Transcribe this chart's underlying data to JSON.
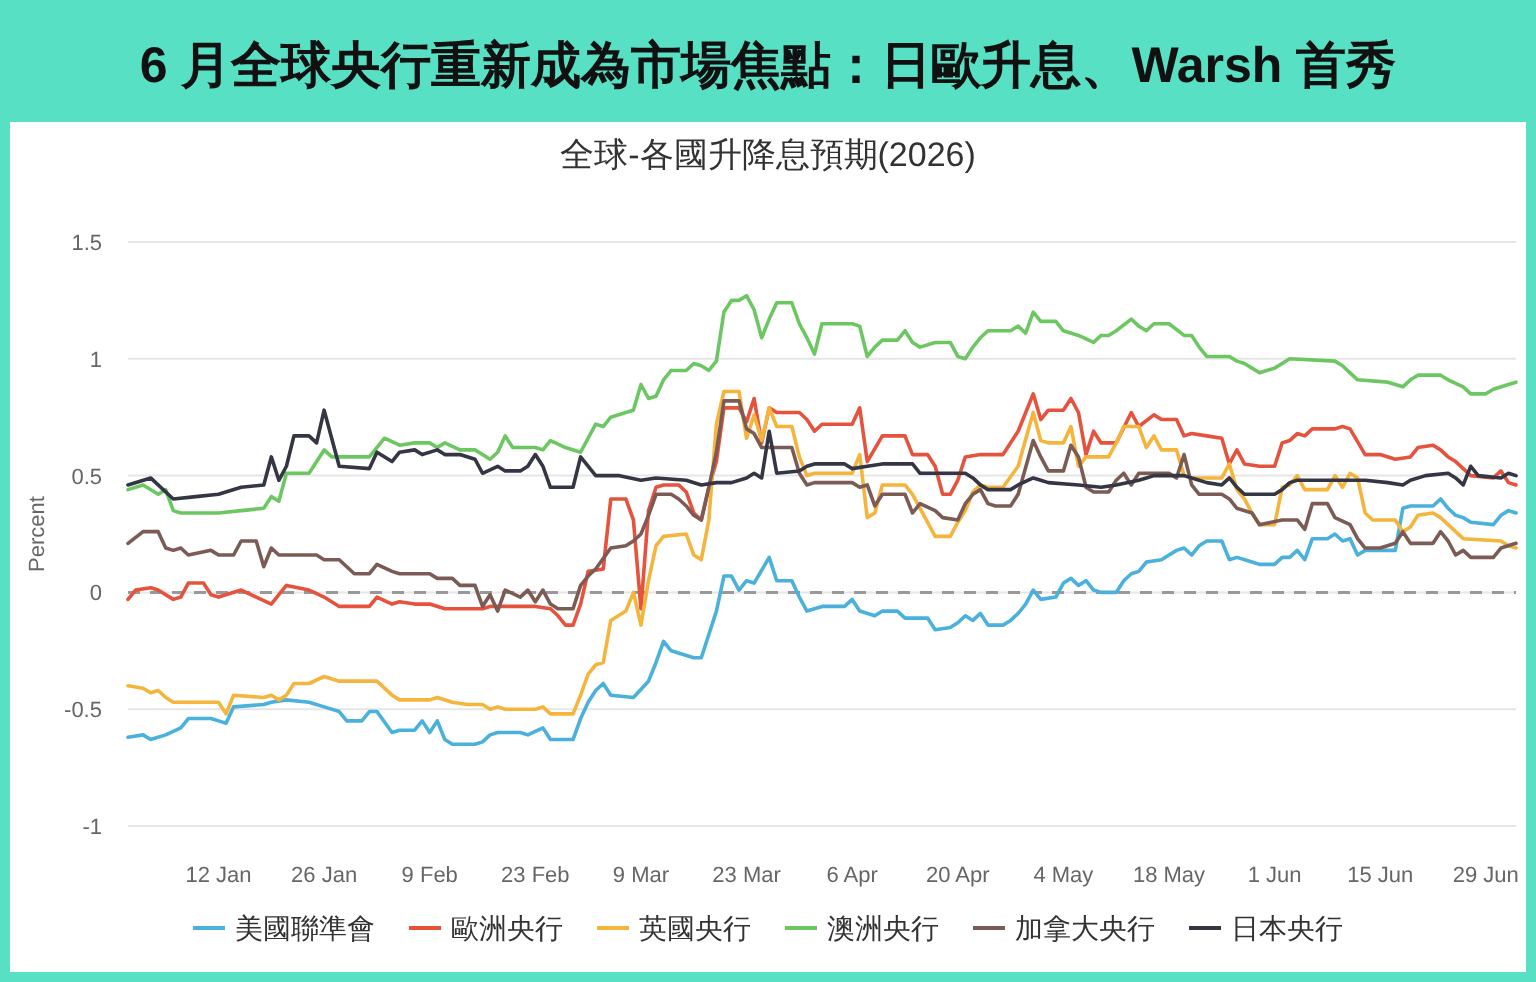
{
  "chart_data": {
    "type": "line",
    "title": "6 月全球央行重新成為市場焦點：日歐升息、Warsh 首秀",
    "subtitle": "全球-各國升降息預期(2026)",
    "ylabel": "Percent",
    "xlim": [
      "2025-12-31",
      "2026-07-03"
    ],
    "xticks": [
      {
        "value": "2026-01-12",
        "label": "12 Jan"
      },
      {
        "value": "2026-01-26",
        "label": "26 Jan"
      },
      {
        "value": "2026-02-09",
        "label": "9 Feb"
      },
      {
        "value": "2026-02-23",
        "label": "23 Feb"
      },
      {
        "value": "2026-03-09",
        "label": "9 Mar"
      },
      {
        "value": "2026-03-23",
        "label": "23 Mar"
      },
      {
        "value": "2026-04-06",
        "label": "6 Apr"
      },
      {
        "value": "2026-04-20",
        "label": "20 Apr"
      },
      {
        "value": "2026-05-04",
        "label": "4 May"
      },
      {
        "value": "2026-05-18",
        "label": "18 May"
      },
      {
        "value": "2026-06-01",
        "label": "1 Jun"
      },
      {
        "value": "2026-06-15",
        "label": "15 Jun"
      },
      {
        "value": "2026-06-29",
        "label": "29 Jun"
      }
    ],
    "ylim": [
      -1,
      1.5
    ],
    "yticks": [
      -1,
      -0.5,
      0,
      0.5,
      1,
      1.5
    ],
    "grid": "y",
    "legend": "bottom",
    "ref_lines": [
      {
        "axis": "y",
        "value": 0,
        "color": "#999999",
        "line_style": "dashed"
      }
    ],
    "series": [
      {
        "name": "美國聯準會",
        "color": "#4ab0dc",
        "x": [
          "2025-12-31",
          "2026-01-02",
          "2026-01-03",
          "2026-01-05",
          "2026-01-07",
          "2026-01-08",
          "2026-01-11",
          "2026-01-12",
          "2026-01-13",
          "2026-01-14",
          "2026-01-18",
          "2026-01-19",
          "2026-01-21",
          "2026-01-24",
          "2026-01-26",
          "2026-01-28",
          "2026-01-29",
          "2026-01-31",
          "2026-02-01",
          "2026-02-02",
          "2026-02-04",
          "2026-02-05",
          "2026-02-07",
          "2026-02-08",
          "2026-02-09",
          "2026-02-10",
          "2026-02-11",
          "2026-02-12",
          "2026-02-15",
          "2026-02-16",
          "2026-02-17",
          "2026-02-18",
          "2026-02-21",
          "2026-02-22",
          "2026-02-24",
          "2026-02-25",
          "2026-02-28",
          "2026-03-01",
          "2026-03-02",
          "2026-03-03",
          "2026-03-04",
          "2026-03-05",
          "2026-03-08",
          "2026-03-10",
          "2026-03-11",
          "2026-03-12",
          "2026-03-13",
          "2026-03-16",
          "2026-03-17",
          "2026-03-18",
          "2026-03-19",
          "2026-03-20",
          "2026-03-21",
          "2026-03-22",
          "2026-03-23",
          "2026-03-24",
          "2026-03-26",
          "2026-03-27",
          "2026-03-29",
          "2026-03-30",
          "2026-03-31",
          "2026-04-02",
          "2026-04-05",
          "2026-04-06",
          "2026-04-07",
          "2026-04-09",
          "2026-04-10",
          "2026-04-12",
          "2026-04-13",
          "2026-04-16",
          "2026-04-17",
          "2026-04-19",
          "2026-04-20",
          "2026-04-21",
          "2026-04-22",
          "2026-04-23",
          "2026-04-24",
          "2026-04-26",
          "2026-04-27",
          "2026-04-28",
          "2026-04-29",
          "2026-04-30",
          "2026-05-01",
          "2026-05-03",
          "2026-05-04",
          "2026-05-05",
          "2026-05-06",
          "2026-05-07",
          "2026-05-08",
          "2026-05-09",
          "2026-05-11",
          "2026-05-12",
          "2026-05-13",
          "2026-05-14",
          "2026-05-15",
          "2026-05-17",
          "2026-05-18",
          "2026-05-19",
          "2026-05-20",
          "2026-05-21",
          "2026-05-22",
          "2026-05-23",
          "2026-05-25",
          "2026-05-26",
          "2026-05-27",
          "2026-05-29",
          "2026-05-30",
          "2026-06-01",
          "2026-06-02",
          "2026-06-03",
          "2026-06-04",
          "2026-06-05",
          "2026-06-06",
          "2026-06-08",
          "2026-06-09",
          "2026-06-10",
          "2026-06-11",
          "2026-06-12",
          "2026-06-13",
          "2026-06-17",
          "2026-06-18",
          "2026-06-19",
          "2026-06-22",
          "2026-06-23",
          "2026-06-24",
          "2026-06-25",
          "2026-06-26",
          "2026-06-27",
          "2026-06-30",
          "2026-07-01",
          "2026-07-02",
          "2026-07-03"
        ],
        "values": [
          -0.62,
          -0.61,
          -0.63,
          -0.61,
          -0.58,
          -0.54,
          -0.54,
          -0.55,
          -0.56,
          -0.49,
          -0.48,
          -0.47,
          -0.46,
          -0.47,
          -0.49,
          -0.51,
          -0.55,
          -0.55,
          -0.51,
          -0.51,
          -0.6,
          -0.59,
          -0.59,
          -0.55,
          -0.6,
          -0.55,
          -0.63,
          -0.65,
          -0.65,
          -0.64,
          -0.61,
          -0.6,
          -0.6,
          -0.61,
          -0.58,
          -0.63,
          -0.63,
          -0.54,
          -0.47,
          -0.42,
          -0.39,
          -0.44,
          -0.45,
          -0.38,
          -0.3,
          -0.21,
          -0.25,
          -0.28,
          -0.28,
          -0.18,
          -0.08,
          0.07,
          0.07,
          0.01,
          0.05,
          0.04,
          0.15,
          0.05,
          0.05,
          -0.02,
          -0.08,
          -0.06,
          -0.06,
          -0.03,
          -0.08,
          -0.1,
          -0.08,
          -0.08,
          -0.11,
          -0.11,
          -0.16,
          -0.15,
          -0.13,
          -0.1,
          -0.12,
          -0.09,
          -0.14,
          -0.14,
          -0.12,
          -0.09,
          -0.05,
          0.01,
          -0.03,
          -0.02,
          0.04,
          0.06,
          0.03,
          0.05,
          0.01,
          0,
          0,
          0.05,
          0.08,
          0.09,
          0.13,
          0.14,
          0.16,
          0.18,
          0.19,
          0.16,
          0.2,
          0.22,
          0.22,
          0.14,
          0.15,
          0.13,
          0.12,
          0.12,
          0.15,
          0.15,
          0.18,
          0.14,
          0.23,
          0.23,
          0.25,
          0.22,
          0.23,
          0.16,
          0.18,
          0.18,
          0.36,
          0.37,
          0.37,
          0.4,
          0.36,
          0.33,
          0.32,
          0.3,
          0.29,
          0.33,
          0.35,
          0.34
        ]
      },
      {
        "name": "歐洲央行",
        "color": "#e5533d",
        "x": [
          "2025-12-31",
          "2026-01-01",
          "2026-01-03",
          "2026-01-04",
          "2026-01-06",
          "2026-01-07",
          "2026-01-08",
          "2026-01-10",
          "2026-01-11",
          "2026-01-12",
          "2026-01-15",
          "2026-01-17",
          "2026-01-19",
          "2026-01-20",
          "2026-01-21",
          "2026-01-24",
          "2026-01-26",
          "2026-01-28",
          "2026-02-01",
          "2026-02-02",
          "2026-02-04",
          "2026-02-05",
          "2026-02-07",
          "2026-02-09",
          "2026-02-11",
          "2026-02-16",
          "2026-02-17",
          "2026-02-23",
          "2026-02-25",
          "2026-02-26",
          "2026-02-27",
          "2026-02-28",
          "2026-03-01",
          "2026-03-02",
          "2026-03-04",
          "2026-03-05",
          "2026-03-07",
          "2026-03-08",
          "2026-03-09",
          "2026-03-10",
          "2026-03-11",
          "2026-03-12",
          "2026-03-14",
          "2026-03-15",
          "2026-03-16",
          "2026-03-17",
          "2026-03-18",
          "2026-03-19",
          "2026-03-20",
          "2026-03-22",
          "2026-03-23",
          "2026-03-24",
          "2026-03-25",
          "2026-03-26",
          "2026-03-27",
          "2026-03-30",
          "2026-03-31",
          "2026-04-01",
          "2026-04-02",
          "2026-04-06",
          "2026-04-07",
          "2026-04-08",
          "2026-04-10",
          "2026-04-13",
          "2026-04-14",
          "2026-04-16",
          "2026-04-17",
          "2026-04-18",
          "2026-04-19",
          "2026-04-20",
          "2026-04-21",
          "2026-04-23",
          "2026-04-26",
          "2026-04-28",
          "2026-04-30",
          "2026-05-01",
          "2026-05-02",
          "2026-05-04",
          "2026-05-05",
          "2026-05-06",
          "2026-05-07",
          "2026-05-08",
          "2026-05-09",
          "2026-05-11",
          "2026-05-13",
          "2026-05-14",
          "2026-05-16",
          "2026-05-17",
          "2026-05-19",
          "2026-05-20",
          "2026-05-21",
          "2026-05-23",
          "2026-05-25",
          "2026-05-26",
          "2026-05-27",
          "2026-05-28",
          "2026-05-30",
          "2026-06-01",
          "2026-06-02",
          "2026-06-03",
          "2026-06-04",
          "2026-06-05",
          "2026-06-06",
          "2026-06-09",
          "2026-06-10",
          "2026-06-11",
          "2026-06-13",
          "2026-06-15",
          "2026-06-17",
          "2026-06-19",
          "2026-06-20",
          "2026-06-22",
          "2026-06-23",
          "2026-06-24",
          "2026-06-25",
          "2026-06-27",
          "2026-06-30",
          "2026-07-01",
          "2026-07-02",
          "2026-07-03"
        ],
        "values": [
          -0.03,
          0.01,
          0.02,
          0.01,
          -0.03,
          -0.02,
          0.04,
          0.04,
          -0.01,
          -0.02,
          0.01,
          -0.02,
          -0.05,
          -0.01,
          0.03,
          0.01,
          -0.02,
          -0.06,
          -0.06,
          -0.02,
          -0.05,
          -0.04,
          -0.05,
          -0.05,
          -0.07,
          -0.07,
          -0.06,
          -0.06,
          -0.07,
          -0.1,
          -0.14,
          -0.14,
          -0.05,
          0.09,
          0.1,
          0.4,
          0.4,
          0.31,
          -0.07,
          0.35,
          0.45,
          0.46,
          0.46,
          0.43,
          0.34,
          0.31,
          0.45,
          0.56,
          0.79,
          0.79,
          0.73,
          0.83,
          0.64,
          0.79,
          0.77,
          0.77,
          0.74,
          0.69,
          0.72,
          0.72,
          0.79,
          0.56,
          0.67,
          0.67,
          0.59,
          0.59,
          0.54,
          0.42,
          0.42,
          0.48,
          0.58,
          0.59,
          0.59,
          0.69,
          0.85,
          0.74,
          0.78,
          0.78,
          0.83,
          0.77,
          0.59,
          0.69,
          0.64,
          0.64,
          0.77,
          0.71,
          0.76,
          0.74,
          0.74,
          0.67,
          0.68,
          0.67,
          0.66,
          0.55,
          0.61,
          0.55,
          0.54,
          0.54,
          0.64,
          0.65,
          0.68,
          0.67,
          0.7,
          0.7,
          0.71,
          0.7,
          0.59,
          0.59,
          0.57,
          0.58,
          0.62,
          0.63,
          0.61,
          0.58,
          0.56,
          0.5,
          0.49,
          0.52,
          0.47,
          0.46
        ]
      },
      {
        "name": "英國央行",
        "color": "#f5b43c",
        "x": [
          "2025-12-31",
          "2026-01-02",
          "2026-01-03",
          "2026-01-04",
          "2026-01-05",
          "2026-01-06",
          "2026-01-12",
          "2026-01-13",
          "2026-01-14",
          "2026-01-18",
          "2026-01-19",
          "2026-01-20",
          "2026-01-21",
          "2026-01-22",
          "2026-01-24",
          "2026-01-26",
          "2026-01-28",
          "2026-02-02",
          "2026-02-04",
          "2026-02-05",
          "2026-02-09",
          "2026-02-10",
          "2026-02-12",
          "2026-02-14",
          "2026-02-16",
          "2026-02-17",
          "2026-02-18",
          "2026-02-19",
          "2026-02-23",
          "2026-02-24",
          "2026-02-25",
          "2026-02-28",
          "2026-03-01",
          "2026-03-02",
          "2026-03-03",
          "2026-03-04",
          "2026-03-05",
          "2026-03-07",
          "2026-03-08",
          "2026-03-09",
          "2026-03-10",
          "2026-03-11",
          "2026-03-12",
          "2026-03-15",
          "2026-03-16",
          "2026-03-17",
          "2026-03-18",
          "2026-03-19",
          "2026-03-20",
          "2026-03-22",
          "2026-03-23",
          "2026-03-24",
          "2026-03-25",
          "2026-03-26",
          "2026-03-27",
          "2026-03-29",
          "2026-03-30",
          "2026-03-31",
          "2026-04-01",
          "2026-04-06",
          "2026-04-07",
          "2026-04-08",
          "2026-04-09",
          "2026-04-10",
          "2026-04-13",
          "2026-04-14",
          "2026-04-15",
          "2026-04-16",
          "2026-04-17",
          "2026-04-19",
          "2026-04-20",
          "2026-04-21",
          "2026-04-22",
          "2026-04-23",
          "2026-04-24",
          "2026-04-26",
          "2026-04-28",
          "2026-04-30",
          "2026-05-01",
          "2026-05-02",
          "2026-05-04",
          "2026-05-05",
          "2026-05-06",
          "2026-05-07",
          "2026-05-10",
          "2026-05-11",
          "2026-05-12",
          "2026-05-14",
          "2026-05-15",
          "2026-05-16",
          "2026-05-17",
          "2026-05-19",
          "2026-05-20",
          "2026-05-21",
          "2026-05-25",
          "2026-05-26",
          "2026-05-27",
          "2026-05-28",
          "2026-05-29",
          "2026-05-30",
          "2026-06-01",
          "2026-06-02",
          "2026-06-03",
          "2026-06-04",
          "2026-06-05",
          "2026-06-08",
          "2026-06-09",
          "2026-06-10",
          "2026-06-11",
          "2026-06-12",
          "2026-06-13",
          "2026-06-14",
          "2026-06-17",
          "2026-06-18",
          "2026-06-19",
          "2026-06-20",
          "2026-06-22",
          "2026-06-23",
          "2026-06-25",
          "2026-06-26",
          "2026-07-01",
          "2026-07-02",
          "2026-07-03"
        ],
        "values": [
          -0.4,
          -0.41,
          -0.43,
          -0.42,
          -0.45,
          -0.47,
          -0.47,
          -0.52,
          -0.44,
          -0.45,
          -0.44,
          -0.46,
          -0.44,
          -0.39,
          -0.39,
          -0.36,
          -0.38,
          -0.38,
          -0.44,
          -0.46,
          -0.46,
          -0.45,
          -0.47,
          -0.48,
          -0.48,
          -0.5,
          -0.49,
          -0.5,
          -0.5,
          -0.49,
          -0.52,
          -0.52,
          -0.44,
          -0.35,
          -0.31,
          -0.3,
          -0.12,
          -0.08,
          0,
          -0.14,
          0.05,
          0.2,
          0.24,
          0.25,
          0.16,
          0.14,
          0.31,
          0.72,
          0.86,
          0.86,
          0.66,
          0.76,
          0.65,
          0.79,
          0.71,
          0.71,
          0.58,
          0.5,
          0.51,
          0.51,
          0.59,
          0.32,
          0.34,
          0.46,
          0.46,
          0.42,
          0.36,
          0.3,
          0.24,
          0.24,
          0.3,
          0.35,
          0.43,
          0.46,
          0.45,
          0.45,
          0.54,
          0.77,
          0.65,
          0.64,
          0.64,
          0.71,
          0.54,
          0.58,
          0.58,
          0.64,
          0.71,
          0.71,
          0.62,
          0.67,
          0.61,
          0.61,
          0.5,
          0.49,
          0.49,
          0.55,
          0.44,
          0.4,
          0.34,
          0.29,
          0.29,
          0.45,
          0.46,
          0.5,
          0.44,
          0.44,
          0.5,
          0.45,
          0.51,
          0.49,
          0.34,
          0.31,
          0.31,
          0.26,
          0.28,
          0.33,
          0.34,
          0.32,
          0.26,
          0.23,
          0.22,
          0.2,
          0.19
        ]
      },
      {
        "name": "澳洲央行",
        "color": "#6cc763",
        "x": [
          "2025-12-31",
          "2026-01-02",
          "2026-01-04",
          "2026-01-05",
          "2026-01-06",
          "2026-01-07",
          "2026-01-12",
          "2026-01-15",
          "2026-01-18",
          "2026-01-19",
          "2026-01-20",
          "2026-01-21",
          "2026-01-24",
          "2026-01-26",
          "2026-01-27",
          "2026-02-01",
          "2026-02-03",
          "2026-02-05",
          "2026-02-07",
          "2026-02-09",
          "2026-02-10",
          "2026-02-11",
          "2026-02-13",
          "2026-02-15",
          "2026-02-17",
          "2026-02-18",
          "2026-02-19",
          "2026-02-20",
          "2026-02-23",
          "2026-02-24",
          "2026-02-25",
          "2026-02-27",
          "2026-03-01",
          "2026-03-03",
          "2026-03-04",
          "2026-03-05",
          "2026-03-07",
          "2026-03-08",
          "2026-03-09",
          "2026-03-10",
          "2026-03-11",
          "2026-03-12",
          "2026-03-13",
          "2026-03-15",
          "2026-03-16",
          "2026-03-17",
          "2026-03-18",
          "2026-03-19",
          "2026-03-20",
          "2026-03-21",
          "2026-03-22",
          "2026-03-23",
          "2026-03-24",
          "2026-03-25",
          "2026-03-26",
          "2026-03-27",
          "2026-03-29",
          "2026-03-30",
          "2026-03-31",
          "2026-04-01",
          "2026-04-02",
          "2026-04-06",
          "2026-04-07",
          "2026-04-08",
          "2026-04-09",
          "2026-04-10",
          "2026-04-12",
          "2026-04-13",
          "2026-04-14",
          "2026-04-15",
          "2026-04-17",
          "2026-04-19",
          "2026-04-20",
          "2026-04-21",
          "2026-04-22",
          "2026-04-23",
          "2026-04-24",
          "2026-04-27",
          "2026-04-28",
          "2026-04-29",
          "2026-04-30",
          "2026-05-01",
          "2026-05-03",
          "2026-05-04",
          "2026-05-06",
          "2026-05-08",
          "2026-05-09",
          "2026-05-10",
          "2026-05-11",
          "2026-05-13",
          "2026-05-14",
          "2026-05-15",
          "2026-05-16",
          "2026-05-18",
          "2026-05-20",
          "2026-05-21",
          "2026-05-22",
          "2026-05-23",
          "2026-05-26",
          "2026-05-27",
          "2026-05-28",
          "2026-05-29",
          "2026-05-30",
          "2026-06-01",
          "2026-06-02",
          "2026-06-03",
          "2026-06-09",
          "2026-06-10",
          "2026-06-11",
          "2026-06-12",
          "2026-06-16",
          "2026-06-18",
          "2026-06-19",
          "2026-06-20",
          "2026-06-23",
          "2026-06-24",
          "2026-06-26",
          "2026-06-27",
          "2026-06-29",
          "2026-06-30",
          "2026-07-02",
          "2026-07-03"
        ],
        "values": [
          0.44,
          0.46,
          0.42,
          0.44,
          0.35,
          0.34,
          0.34,
          0.35,
          0.36,
          0.41,
          0.39,
          0.51,
          0.51,
          0.61,
          0.58,
          0.58,
          0.66,
          0.63,
          0.64,
          0.64,
          0.62,
          0.64,
          0.61,
          0.61,
          0.57,
          0.6,
          0.67,
          0.62,
          0.62,
          0.61,
          0.65,
          0.62,
          0.6,
          0.72,
          0.71,
          0.75,
          0.77,
          0.78,
          0.89,
          0.83,
          0.84,
          0.91,
          0.95,
          0.95,
          0.98,
          0.97,
          0.95,
          0.99,
          1.2,
          1.25,
          1.25,
          1.27,
          1.21,
          1.09,
          1.17,
          1.24,
          1.24,
          1.15,
          1.09,
          1.02,
          1.15,
          1.15,
          1.14,
          1.01,
          1.05,
          1.08,
          1.08,
          1.12,
          1.07,
          1.05,
          1.07,
          1.07,
          1.01,
          1.0,
          1.05,
          1.09,
          1.12,
          1.12,
          1.14,
          1.11,
          1.2,
          1.16,
          1.16,
          1.12,
          1.1,
          1.07,
          1.1,
          1.1,
          1.12,
          1.17,
          1.14,
          1.12,
          1.15,
          1.15,
          1.1,
          1.1,
          1.05,
          1.01,
          1.01,
          0.99,
          0.98,
          0.96,
          0.94,
          0.96,
          0.98,
          1.0,
          0.99,
          0.97,
          0.94,
          0.91,
          0.9,
          0.88,
          0.91,
          0.93,
          0.93,
          0.91,
          0.88,
          0.85,
          0.85,
          0.87,
          0.89,
          0.9
        ]
      },
      {
        "name": "加拿大央行",
        "color": "#7d5b55",
        "x": [
          "2025-12-31",
          "2026-01-02",
          "2026-01-04",
          "2026-01-05",
          "2026-01-06",
          "2026-01-07",
          "2026-01-08",
          "2026-01-11",
          "2026-01-12",
          "2026-01-14",
          "2026-01-15",
          "2026-01-17",
          "2026-01-18",
          "2026-01-19",
          "2026-01-20",
          "2026-01-25",
          "2026-01-26",
          "2026-01-28",
          "2026-01-29",
          "2026-01-30",
          "2026-02-01",
          "2026-02-02",
          "2026-02-04",
          "2026-02-05",
          "2026-02-09",
          "2026-02-10",
          "2026-02-12",
          "2026-02-13",
          "2026-02-15",
          "2026-02-16",
          "2026-02-17",
          "2026-02-18",
          "2026-02-19",
          "2026-02-21",
          "2026-02-22",
          "2026-02-23",
          "2026-02-24",
          "2026-02-25",
          "2026-02-26",
          "2026-02-28",
          "2026-03-01",
          "2026-03-02",
          "2026-03-03",
          "2026-03-05",
          "2026-03-07",
          "2026-03-08",
          "2026-03-09",
          "2026-03-10",
          "2026-03-11",
          "2026-03-13",
          "2026-03-14",
          "2026-03-15",
          "2026-03-16",
          "2026-03-17",
          "2026-03-18",
          "2026-03-19",
          "2026-03-20",
          "2026-03-22",
          "2026-03-23",
          "2026-03-24",
          "2026-03-25",
          "2026-03-29",
          "2026-03-30",
          "2026-03-31",
          "2026-04-01",
          "2026-04-06",
          "2026-04-07",
          "2026-04-08",
          "2026-04-09",
          "2026-04-10",
          "2026-04-13",
          "2026-04-14",
          "2026-04-15",
          "2026-04-17",
          "2026-04-18",
          "2026-04-20",
          "2026-04-21",
          "2026-04-22",
          "2026-04-23",
          "2026-04-24",
          "2026-04-25",
          "2026-04-27",
          "2026-04-28",
          "2026-04-30",
          "2026-05-01",
          "2026-05-02",
          "2026-05-04",
          "2026-05-05",
          "2026-05-06",
          "2026-05-07",
          "2026-05-08",
          "2026-05-10",
          "2026-05-11",
          "2026-05-12",
          "2026-05-13",
          "2026-05-14",
          "2026-05-18",
          "2026-05-19",
          "2026-05-20",
          "2026-05-21",
          "2026-05-22",
          "2026-05-25",
          "2026-05-26",
          "2026-05-27",
          "2026-05-29",
          "2026-05-30",
          "2026-06-02",
          "2026-06-04",
          "2026-06-05",
          "2026-06-06",
          "2026-06-08",
          "2026-06-09",
          "2026-06-11",
          "2026-06-12",
          "2026-06-13",
          "2026-06-15",
          "2026-06-17",
          "2026-06-18",
          "2026-06-19",
          "2026-06-22",
          "2026-06-23",
          "2026-06-24",
          "2026-06-25",
          "2026-06-26",
          "2026-06-27",
          "2026-06-30",
          "2026-07-01",
          "2026-07-03"
        ],
        "values": [
          0.21,
          0.26,
          0.26,
          0.19,
          0.18,
          0.19,
          0.16,
          0.18,
          0.16,
          0.16,
          0.22,
          0.22,
          0.11,
          0.19,
          0.16,
          0.16,
          0.14,
          0.14,
          0.11,
          0.08,
          0.08,
          0.12,
          0.09,
          0.08,
          0.08,
          0.06,
          0.06,
          0.03,
          0.03,
          -0.06,
          -0.01,
          -0.08,
          0.01,
          -0.02,
          0.01,
          -0.04,
          0.01,
          -0.05,
          -0.07,
          -0.07,
          0.03,
          0.07,
          0.1,
          0.19,
          0.2,
          0.22,
          0.25,
          0.33,
          0.42,
          0.42,
          0.4,
          0.37,
          0.33,
          0.31,
          0.45,
          0.6,
          0.82,
          0.82,
          0.7,
          0.68,
          0.62,
          0.62,
          0.51,
          0.46,
          0.47,
          0.47,
          0.45,
          0.46,
          0.37,
          0.42,
          0.42,
          0.34,
          0.38,
          0.35,
          0.32,
          0.31,
          0.38,
          0.42,
          0.44,
          0.38,
          0.37,
          0.37,
          0.42,
          0.65,
          0.58,
          0.52,
          0.52,
          0.63,
          0.58,
          0.45,
          0.43,
          0.43,
          0.48,
          0.51,
          0.46,
          0.51,
          0.51,
          0.49,
          0.59,
          0.46,
          0.42,
          0.42,
          0.4,
          0.36,
          0.34,
          0.29,
          0.31,
          0.31,
          0.27,
          0.38,
          0.38,
          0.32,
          0.29,
          0.23,
          0.19,
          0.19,
          0.21,
          0.26,
          0.21,
          0.21,
          0.26,
          0.22,
          0.16,
          0.18,
          0.15,
          0.15,
          0.19,
          0.21
        ]
      },
      {
        "name": "日本央行",
        "color": "#343644",
        "x": [
          "2025-12-31",
          "2026-01-03",
          "2026-01-06",
          "2026-01-09",
          "2026-01-12",
          "2026-01-15",
          "2026-01-18",
          "2026-01-19",
          "2026-01-20",
          "2026-01-21",
          "2026-01-22",
          "2026-01-24",
          "2026-01-25",
          "2026-01-26",
          "2026-01-28",
          "2026-02-01",
          "2026-02-02",
          "2026-02-04",
          "2026-02-05",
          "2026-02-07",
          "2026-02-08",
          "2026-02-10",
          "2026-02-11",
          "2026-02-13",
          "2026-02-15",
          "2026-02-16",
          "2026-02-18",
          "2026-02-19",
          "2026-02-21",
          "2026-02-22",
          "2026-02-23",
          "2026-02-24",
          "2026-02-25",
          "2026-02-28",
          "2026-03-01",
          "2026-03-03",
          "2026-03-06",
          "2026-03-09",
          "2026-03-11",
          "2026-03-15",
          "2026-03-17",
          "2026-03-19",
          "2026-03-21",
          "2026-03-23",
          "2026-03-24",
          "2026-03-25",
          "2026-03-26",
          "2026-03-27",
          "2026-03-30",
          "2026-03-31",
          "2026-04-01",
          "2026-04-05",
          "2026-04-06",
          "2026-04-08",
          "2026-04-10",
          "2026-04-14",
          "2026-04-15",
          "2026-04-21",
          "2026-04-22",
          "2026-04-23",
          "2026-04-24",
          "2026-04-27",
          "2026-04-28",
          "2026-04-30",
          "2026-05-01",
          "2026-05-02",
          "2026-05-06",
          "2026-05-09",
          "2026-05-11",
          "2026-05-14",
          "2026-05-15",
          "2026-05-16",
          "2026-05-20",
          "2026-05-22",
          "2026-05-23",
          "2026-05-25",
          "2026-05-26",
          "2026-05-27",
          "2026-05-28",
          "2026-06-01",
          "2026-06-02",
          "2026-06-03",
          "2026-06-04",
          "2026-06-13",
          "2026-06-16",
          "2026-06-18",
          "2026-06-19",
          "2026-06-21",
          "2026-06-24",
          "2026-06-25",
          "2026-06-26",
          "2026-06-27",
          "2026-06-28",
          "2026-07-01",
          "2026-07-02",
          "2026-07-03"
        ],
        "values": [
          0.46,
          0.49,
          0.4,
          0.41,
          0.42,
          0.45,
          0.46,
          0.58,
          0.48,
          0.54,
          0.67,
          0.67,
          0.64,
          0.78,
          0.54,
          0.53,
          0.6,
          0.56,
          0.6,
          0.61,
          0.59,
          0.61,
          0.59,
          0.59,
          0.57,
          0.51,
          0.54,
          0.52,
          0.52,
          0.54,
          0.59,
          0.54,
          0.45,
          0.45,
          0.58,
          0.5,
          0.5,
          0.48,
          0.49,
          0.48,
          0.46,
          0.47,
          0.47,
          0.49,
          0.51,
          0.49,
          0.69,
          0.51,
          0.52,
          0.54,
          0.55,
          0.55,
          0.53,
          0.54,
          0.55,
          0.55,
          0.51,
          0.51,
          0.49,
          0.46,
          0.44,
          0.44,
          0.46,
          0.49,
          0.48,
          0.47,
          0.46,
          0.45,
          0.46,
          0.48,
          0.49,
          0.5,
          0.5,
          0.48,
          0.47,
          0.46,
          0.49,
          0.45,
          0.42,
          0.42,
          0.44,
          0.47,
          0.48,
          0.48,
          0.47,
          0.46,
          0.48,
          0.5,
          0.51,
          0.49,
          0.46,
          0.54,
          0.5,
          0.49,
          0.51,
          0.5
        ]
      }
    ]
  }
}
